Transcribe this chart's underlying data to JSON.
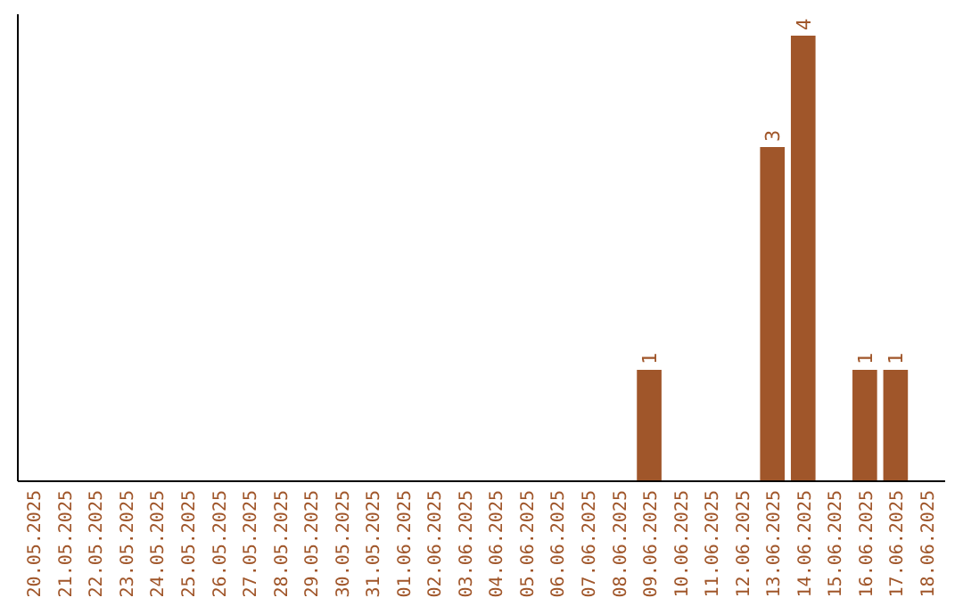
{
  "chart_data": {
    "type": "bar",
    "categories": [
      "20.05.2025",
      "21.05.2025",
      "22.05.2025",
      "23.05.2025",
      "24.05.2025",
      "25.05.2025",
      "26.05.2025",
      "27.05.2025",
      "28.05.2025",
      "29.05.2025",
      "30.05.2025",
      "31.05.2025",
      "01.06.2025",
      "02.06.2025",
      "03.06.2025",
      "04.06.2025",
      "05.06.2025",
      "06.06.2025",
      "07.06.2025",
      "08.06.2025",
      "09.06.2025",
      "10.06.2025",
      "11.06.2025",
      "12.06.2025",
      "13.06.2025",
      "14.06.2025",
      "15.06.2025",
      "16.06.2025",
      "17.06.2025",
      "18.06.2025"
    ],
    "values": [
      null,
      null,
      null,
      null,
      null,
      null,
      null,
      null,
      null,
      null,
      null,
      null,
      null,
      null,
      null,
      null,
      null,
      null,
      null,
      null,
      1,
      null,
      null,
      null,
      3,
      4,
      null,
      1,
      1,
      null
    ],
    "value_labels": [
      null,
      null,
      null,
      null,
      null,
      null,
      null,
      null,
      null,
      null,
      null,
      null,
      null,
      null,
      null,
      null,
      null,
      null,
      null,
      null,
      "1",
      null,
      null,
      null,
      "3",
      "4",
      null,
      "1",
      "1",
      null
    ],
    "color": "#a0562a",
    "tick_labels": "x"
  }
}
